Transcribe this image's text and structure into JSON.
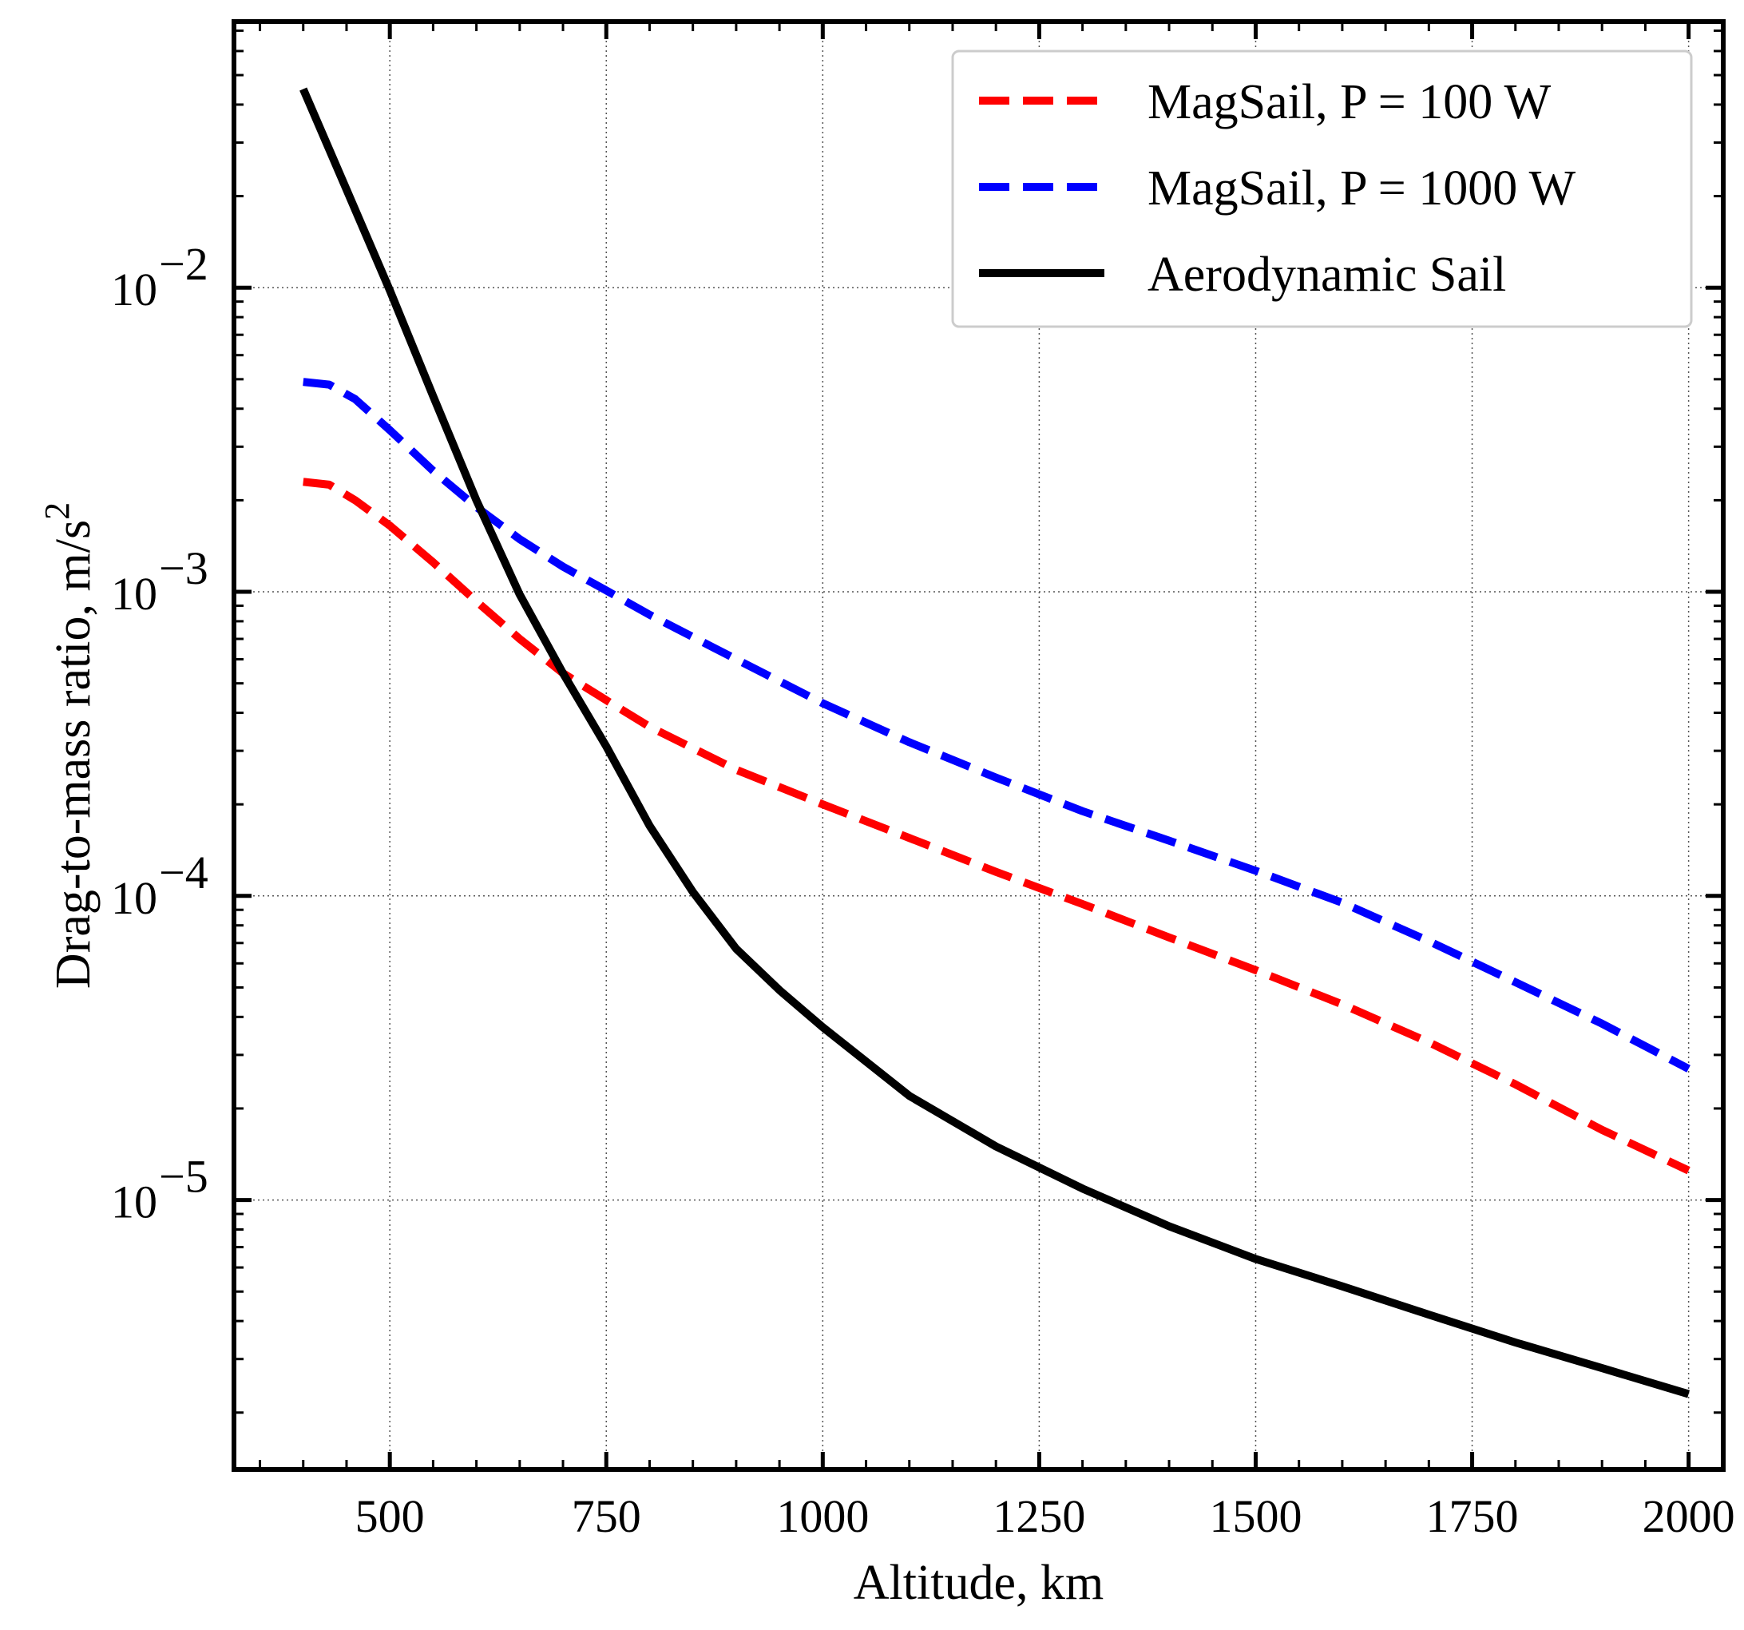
{
  "chart_data": {
    "type": "line",
    "title": "",
    "xlabel": "Altitude, km",
    "ylabel": "Drag-to-mass ratio, m/s",
    "ylabel_superscript": "2",
    "xscale": "linear",
    "yscale": "log",
    "xlim": [
      320,
      2040
    ],
    "ylim": [
      1.3e-06,
      0.075
    ],
    "grid": true,
    "legend_position": "top-right",
    "x_ticks": [
      {
        "value": 500,
        "label": "500"
      },
      {
        "value": 750,
        "label": "750"
      },
      {
        "value": 1000,
        "label": "1000"
      },
      {
        "value": 1250,
        "label": "1250"
      },
      {
        "value": 1500,
        "label": "1500"
      },
      {
        "value": 1750,
        "label": "1750"
      },
      {
        "value": 2000,
        "label": "2000"
      }
    ],
    "y_ticks": [
      {
        "value": 0.01,
        "base": "10",
        "exp": "−2"
      },
      {
        "value": 0.001,
        "base": "10",
        "exp": "−3"
      },
      {
        "value": 0.0001,
        "base": "10",
        "exp": "−4"
      },
      {
        "value": 1e-05,
        "base": "10",
        "exp": "−5"
      }
    ],
    "series": [
      {
        "name": "MagSail, P = 100 W",
        "color": "#ff0000",
        "style": "dashed",
        "x": [
          400,
          430,
          460,
          500,
          550,
          600,
          650,
          700,
          750,
          800,
          900,
          1000,
          1100,
          1200,
          1300,
          1400,
          1500,
          1600,
          1700,
          1800,
          1900,
          2000
        ],
        "y": [
          0.0023,
          0.00225,
          0.002,
          0.00165,
          0.00125,
          0.00093,
          0.0007,
          0.00054,
          0.00044,
          0.00036,
          0.00026,
          0.0002,
          0.000155,
          0.00012,
          9.4e-05,
          7.3e-05,
          5.7e-05,
          4.4e-05,
          3.3e-05,
          2.4e-05,
          1.7e-05,
          1.25e-05
        ]
      },
      {
        "name": "MagSail, P = 1000 W",
        "color": "#0000ff",
        "style": "dashed",
        "x": [
          400,
          430,
          460,
          500,
          550,
          600,
          650,
          700,
          750,
          800,
          900,
          1000,
          1100,
          1200,
          1300,
          1400,
          1500,
          1600,
          1700,
          1800,
          1900,
          2000
        ],
        "y": [
          0.0049,
          0.0048,
          0.0043,
          0.0034,
          0.0025,
          0.0019,
          0.00149,
          0.00121,
          0.00101,
          0.00084,
          0.0006,
          0.00043,
          0.00032,
          0.000245,
          0.00019,
          0.000152,
          0.000121,
          9.5e-05,
          7.1e-05,
          5.2e-05,
          3.8e-05,
          2.7e-05
        ]
      },
      {
        "name": "Aerodynamic Sail",
        "color": "#000000",
        "style": "solid",
        "x": [
          400,
          450,
          500,
          550,
          600,
          650,
          700,
          750,
          800,
          850,
          900,
          950,
          1000,
          1100,
          1200,
          1300,
          1400,
          1500,
          1600,
          1700,
          1800,
          1900,
          2000
        ],
        "y": [
          0.045,
          0.021,
          0.0098,
          0.0044,
          0.002,
          0.00098,
          0.00054,
          0.00031,
          0.00017,
          0.000103,
          6.7e-05,
          4.9e-05,
          3.7e-05,
          2.2e-05,
          1.5e-05,
          1.09e-05,
          8.2e-06,
          6.4e-06,
          5.2e-06,
          4.2e-06,
          3.4e-06,
          2.8e-06,
          2.3e-06
        ]
      }
    ]
  }
}
